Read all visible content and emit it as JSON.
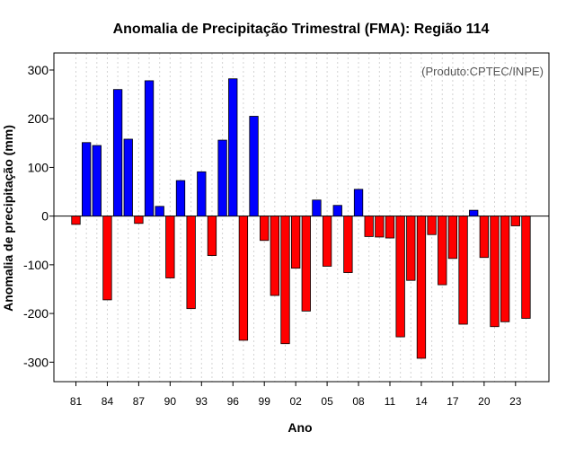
{
  "chart_data": {
    "type": "bar",
    "title": "Anomalia de Precipitação Trimestral (FMA): Região 114",
    "xlabel": "Ano",
    "ylabel": "Anomalia de precipitação (mm)",
    "credit": "(Produto:CPTEC/INPE)",
    "ylim": [
      -340,
      335
    ],
    "yticks": [
      -300,
      -200,
      -100,
      0,
      100,
      200,
      300
    ],
    "tick_labels": [
      "81",
      "84",
      "87",
      "90",
      "93",
      "96",
      "99",
      "02",
      "05",
      "08",
      "11",
      "14",
      "17",
      "20",
      "23"
    ],
    "categories": [
      "1981",
      "1982",
      "1983",
      "1984",
      "1985",
      "1986",
      "1987",
      "1988",
      "1989",
      "1990",
      "1991",
      "1992",
      "1993",
      "1994",
      "1995",
      "1996",
      "1997",
      "1998",
      "1999",
      "2000",
      "2001",
      "2002",
      "2003",
      "2004",
      "2005",
      "2006",
      "2007",
      "2008",
      "2009",
      "2010",
      "2011",
      "2012",
      "2013",
      "2014",
      "2015",
      "2016",
      "2017",
      "2018",
      "2019",
      "2020",
      "2021",
      "2022",
      "2023",
      "2024"
    ],
    "values": [
      -17,
      151,
      145,
      -172,
      260,
      158,
      -15,
      278,
      20,
      -127,
      73,
      -190,
      91,
      -81,
      156,
      282,
      -255,
      205,
      -50,
      -163,
      -262,
      -107,
      -195,
      33,
      -103,
      22,
      -116,
      55,
      -42,
      -43,
      -45,
      -248,
      -132,
      -292,
      -38,
      -141,
      -87,
      -222,
      12,
      -85,
      -227,
      -217,
      -20,
      -210
    ],
    "colors": {
      "positive": "#0000ff",
      "negative": "#ff0000",
      "grid": "#d3d3d3"
    }
  }
}
